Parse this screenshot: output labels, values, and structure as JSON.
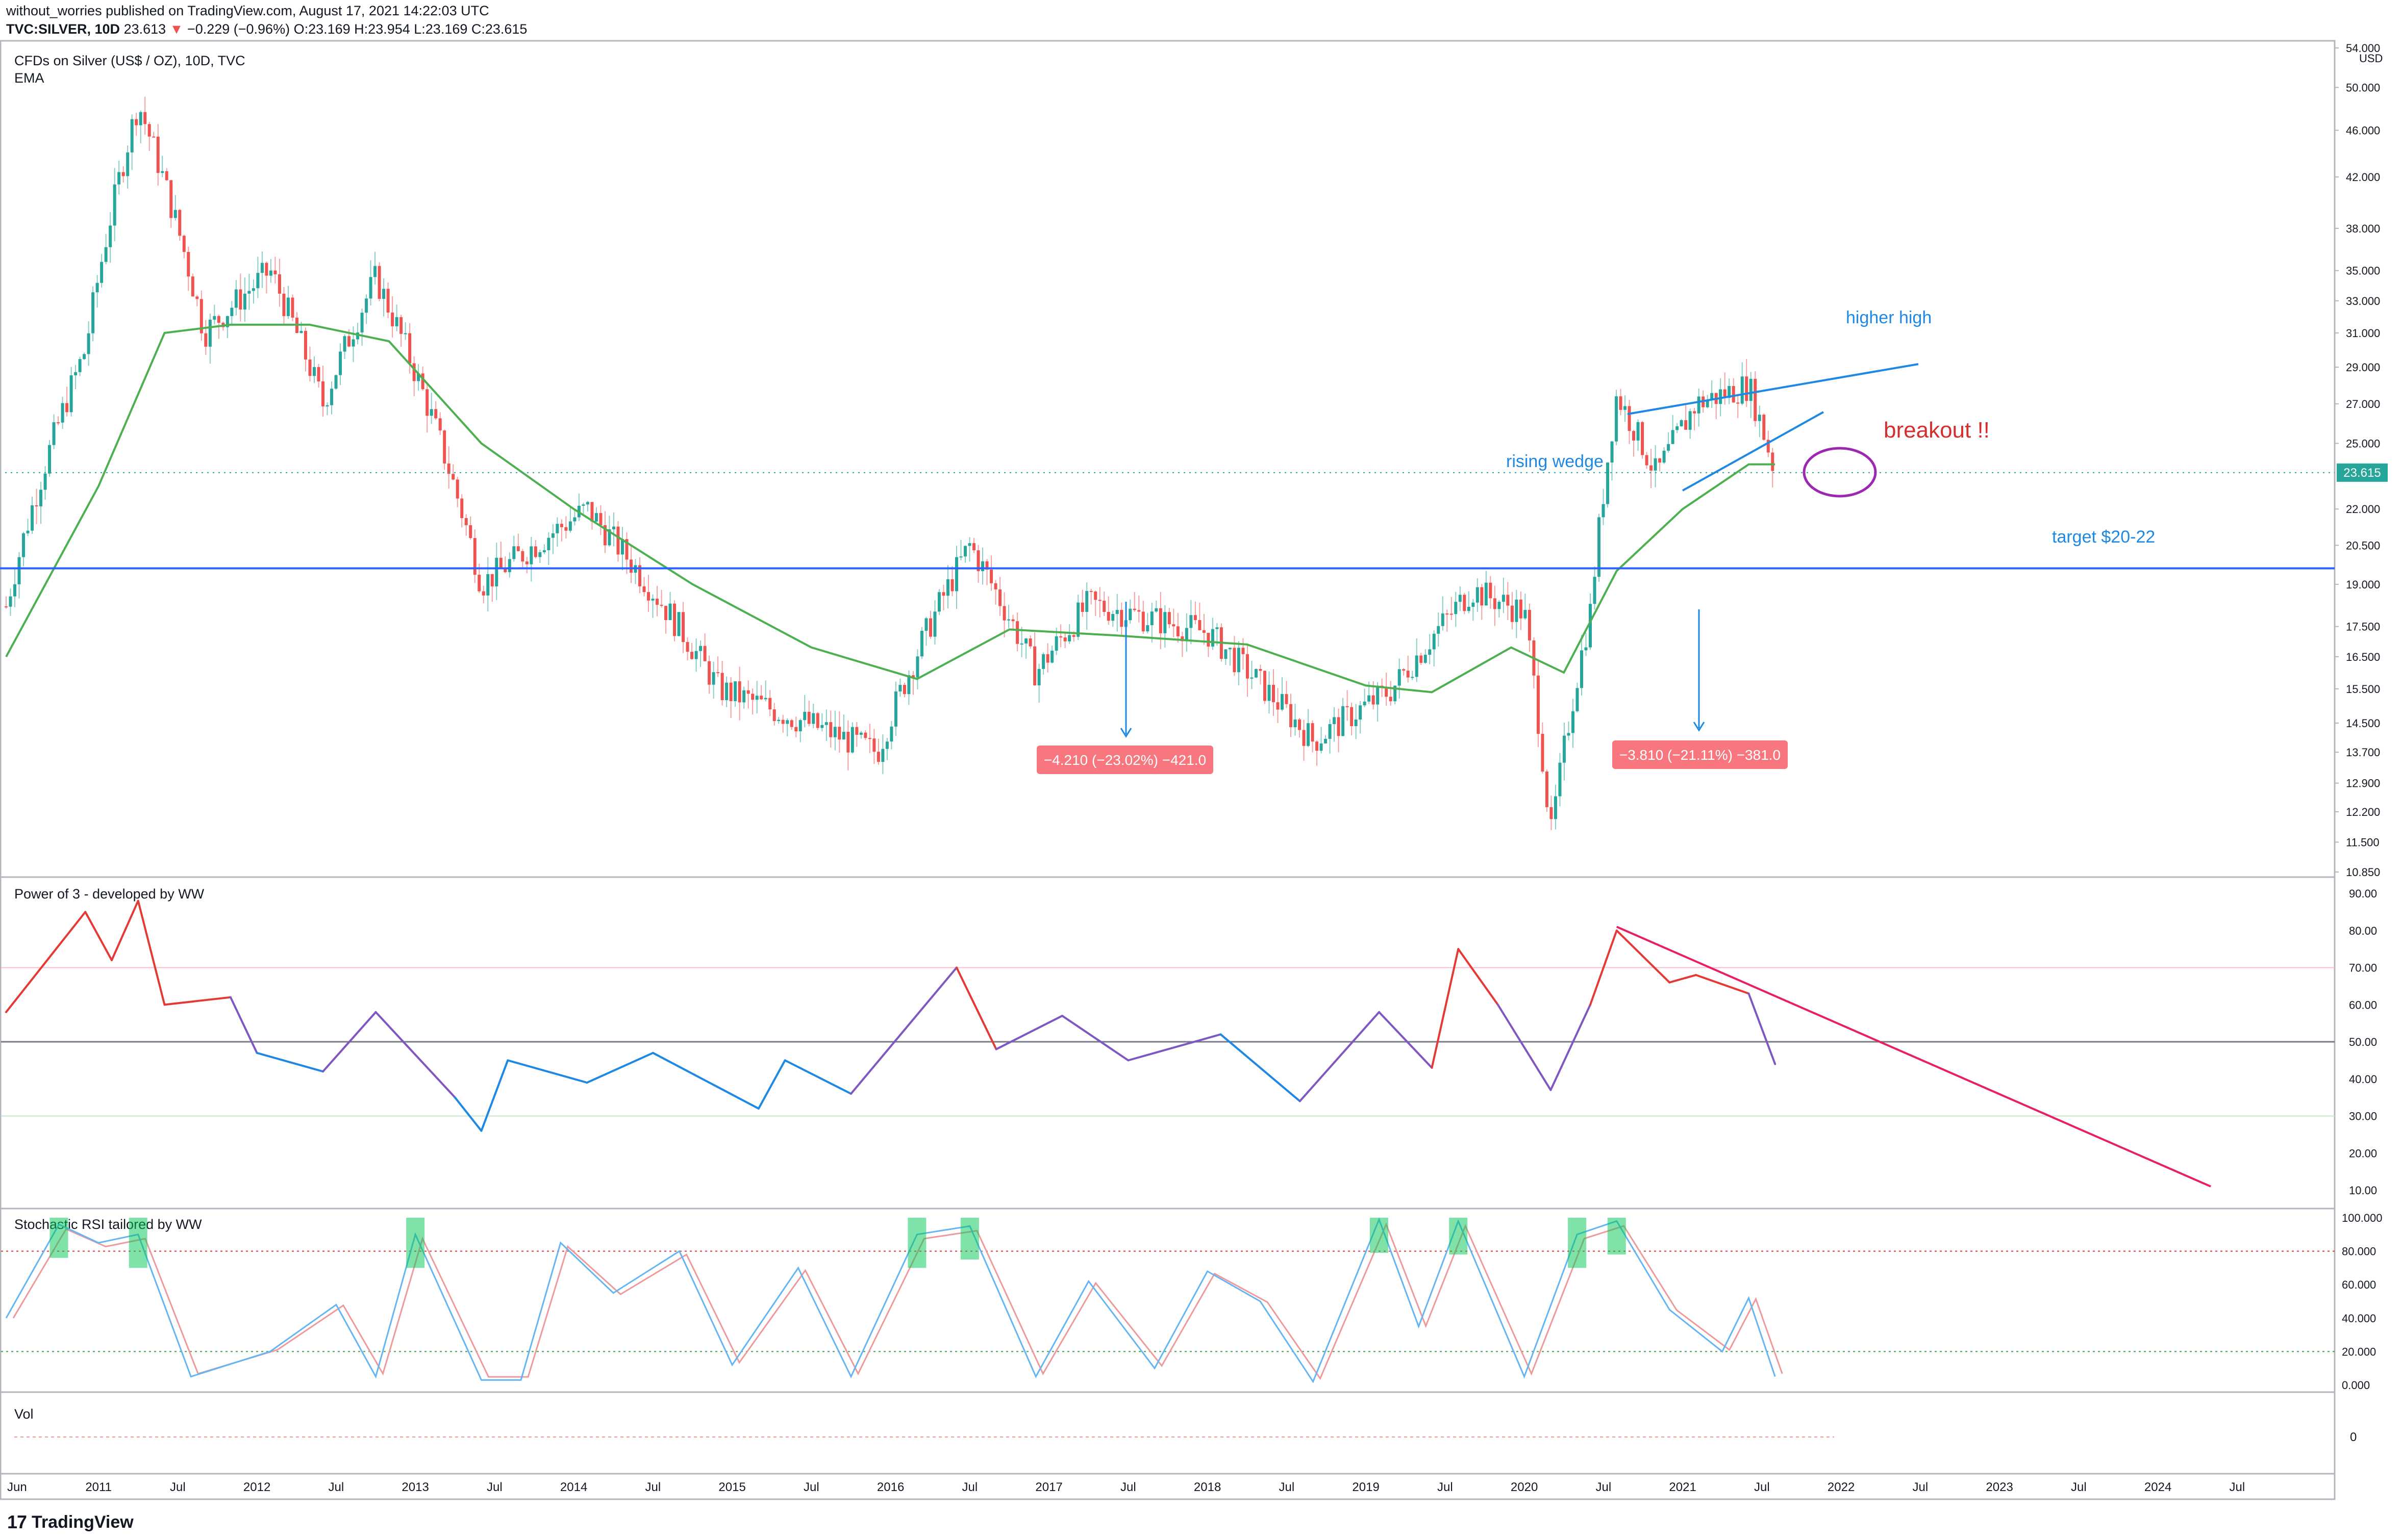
{
  "header": {
    "publisher_line": "without_worries published on TradingView.com, August 17, 2021 14:22:03 UTC",
    "symbol": "TVC:SILVER, 10D",
    "last": "23.613",
    "change_arrow": "▼",
    "change": "−0.229 (−0.96%)",
    "ohlc": "O:23.169 H:23.954 L:23.169 C:23.615"
  },
  "footer": {
    "logo_text": "TradingView",
    "logo_mark": "17"
  },
  "colors": {
    "up": "#26a69a",
    "down": "#ef5350",
    "ema": "#4caf50",
    "trend": "#2962ff",
    "annotation_blue": "#1e88e5",
    "annotation_red": "#d32f2f",
    "circle": "#9c27b0",
    "power_red": "#e53935",
    "power_blue": "#1e88e5",
    "power_trend": "#e91e63",
    "stoch_k": "#64b5f6",
    "stoch_d": "#ef9a9a",
    "stoch_extreme": "#00c853"
  },
  "chart_data": [
    {
      "type": "candlestick",
      "legend_title": "CFDs on Silver (US$ / OZ), 10D, TVC",
      "legend_indicator": "EMA",
      "currency": "USD",
      "last_price_label": "23.615",
      "price_axis_ticks": [
        "54.000",
        "50.000",
        "46.000",
        "42.000",
        "38.000",
        "35.000",
        "33.000",
        "31.000",
        "29.000",
        "27.000",
        "25.000",
        "23.615",
        "22.000",
        "20.500",
        "19.000",
        "17.500",
        "16.500",
        "15.500",
        "14.500",
        "13.700",
        "12.900",
        "12.200",
        "11.500",
        "10.850"
      ],
      "time_axis_labels": [
        "Jun",
        "2011",
        "Jul",
        "2012",
        "Jul",
        "2013",
        "Jul",
        "2014",
        "Jul",
        "2015",
        "Jul",
        "2016",
        "Jul",
        "2017",
        "Jul",
        "2018",
        "Jul",
        "2019",
        "Jul",
        "2020",
        "Jul",
        "2021",
        "Jul",
        "2022",
        "Jul",
        "2023",
        "Jul",
        "2024",
        "Jul"
      ],
      "key_points": [
        {
          "date": "2010-06",
          "price": 18.2
        },
        {
          "date": "2010-12",
          "price": 30.0
        },
        {
          "date": "2011-04",
          "price": 48.5
        },
        {
          "date": "2011-09",
          "price": 31.0
        },
        {
          "date": "2012-02",
          "price": 35.0
        },
        {
          "date": "2012-06",
          "price": 27.0
        },
        {
          "date": "2012-10",
          "price": 34.5
        },
        {
          "date": "2013-06",
          "price": 19.0
        },
        {
          "date": "2014-02",
          "price": 22.0
        },
        {
          "date": "2014-12",
          "price": 15.5
        },
        {
          "date": "2015-12",
          "price": 13.7
        },
        {
          "date": "2016-07",
          "price": 20.5
        },
        {
          "date": "2016-12",
          "price": 16.0
        },
        {
          "date": "2017-04",
          "price": 18.3
        },
        {
          "date": "2018-01",
          "price": 17.3
        },
        {
          "date": "2018-09",
          "price": 14.0
        },
        {
          "date": "2019-03",
          "price": 15.5
        },
        {
          "date": "2019-09",
          "price": 18.8
        },
        {
          "date": "2020-01",
          "price": 18.0
        },
        {
          "date": "2020-03",
          "price": 11.6
        },
        {
          "date": "2020-06",
          "price": 18.0
        },
        {
          "date": "2020-08",
          "price": 27.5
        },
        {
          "date": "2020-11",
          "price": 23.5
        },
        {
          "date": "2021-02",
          "price": 27.0
        },
        {
          "date": "2021-06",
          "price": 28.0
        },
        {
          "date": "2021-08",
          "price": 23.6
        }
      ],
      "ema_points": [
        {
          "date": "2010-06",
          "price": 16.5
        },
        {
          "date": "2011-01",
          "price": 23.0
        },
        {
          "date": "2011-06",
          "price": 31.0
        },
        {
          "date": "2011-11",
          "price": 31.5
        },
        {
          "date": "2012-05",
          "price": 31.5
        },
        {
          "date": "2012-11",
          "price": 30.5
        },
        {
          "date": "2013-06",
          "price": 25.0
        },
        {
          "date": "2014-01",
          "price": 22.0
        },
        {
          "date": "2014-10",
          "price": 19.0
        },
        {
          "date": "2015-07",
          "price": 16.8
        },
        {
          "date": "2016-03",
          "price": 15.8
        },
        {
          "date": "2016-10",
          "price": 17.4
        },
        {
          "date": "2017-06",
          "price": 17.2
        },
        {
          "date": "2018-04",
          "price": 16.9
        },
        {
          "date": "2019-01",
          "price": 15.6
        },
        {
          "date": "2019-06",
          "price": 15.4
        },
        {
          "date": "2019-12",
          "price": 16.8
        },
        {
          "date": "2020-04",
          "price": 16.0
        },
        {
          "date": "2020-08",
          "price": 19.5
        },
        {
          "date": "2021-01",
          "price": 22.0
        },
        {
          "date": "2021-06",
          "price": 24.0
        },
        {
          "date": "2021-08",
          "price": 24.0
        }
      ],
      "horizontal_line_price": 19.6,
      "annotations": {
        "higher_high": "higher high",
        "rising_wedge": "rising wedge",
        "breakout": "breakout !!",
        "target": "target $20-22",
        "measure1": "−4.210 (−23.02%) −421.0",
        "measure2": "−3.810 (−21.11%) −381.0"
      }
    },
    {
      "type": "line",
      "title": "Power of 3 - developed by WW",
      "ylim": [
        0,
        90
      ],
      "y_ticks": [
        "90.00",
        "80.00",
        "70.00",
        "60.00",
        "50.00",
        "40.00",
        "30.00",
        "20.00",
        "10.00"
      ],
      "levels": [
        70,
        50,
        30
      ],
      "points": [
        {
          "date": "2010-06",
          "value": 58
        },
        {
          "date": "2010-12",
          "value": 85
        },
        {
          "date": "2011-02",
          "value": 72
        },
        {
          "date": "2011-04",
          "value": 88
        },
        {
          "date": "2011-06",
          "value": 60
        },
        {
          "date": "2011-11",
          "value": 62
        },
        {
          "date": "2012-01",
          "value": 47
        },
        {
          "date": "2012-06",
          "value": 42
        },
        {
          "date": "2012-10",
          "value": 58
        },
        {
          "date": "2013-04",
          "value": 35
        },
        {
          "date": "2013-06",
          "value": 26
        },
        {
          "date": "2013-08",
          "value": 45
        },
        {
          "date": "2014-02",
          "value": 39
        },
        {
          "date": "2014-07",
          "value": 47
        },
        {
          "date": "2015-03",
          "value": 32
        },
        {
          "date": "2015-05",
          "value": 45
        },
        {
          "date": "2015-10",
          "value": 36
        },
        {
          "date": "2016-06",
          "value": 70
        },
        {
          "date": "2016-09",
          "value": 48
        },
        {
          "date": "2017-02",
          "value": 57
        },
        {
          "date": "2017-07",
          "value": 45
        },
        {
          "date": "2018-02",
          "value": 52
        },
        {
          "date": "2018-08",
          "value": 34
        },
        {
          "date": "2019-02",
          "value": 58
        },
        {
          "date": "2019-06",
          "value": 43
        },
        {
          "date": "2019-08",
          "value": 75
        },
        {
          "date": "2019-11",
          "value": 60
        },
        {
          "date": "2020-03",
          "value": 37
        },
        {
          "date": "2020-06",
          "value": 60
        },
        {
          "date": "2020-08",
          "value": 80
        },
        {
          "date": "2020-12",
          "value": 66
        },
        {
          "date": "2021-02",
          "value": 68
        },
        {
          "date": "2021-06",
          "value": 63
        },
        {
          "date": "2021-08",
          "value": 44
        }
      ],
      "trend_line": [
        {
          "date": "2020-08",
          "value": 81
        },
        {
          "date": "2024-05",
          "value": 11
        }
      ]
    },
    {
      "type": "line",
      "title": "Stochastic RSI tailored by WW",
      "ylim": [
        0,
        100
      ],
      "y_ticks": [
        "100.000",
        "80.000",
        "60.000",
        "40.000",
        "20.000",
        "0.000"
      ],
      "levels": [
        80,
        20
      ],
      "points": [
        {
          "date": "2010-06",
          "value": 40
        },
        {
          "date": "2010-10",
          "value": 96
        },
        {
          "date": "2011-01",
          "value": 85
        },
        {
          "date": "2011-04",
          "value": 90
        },
        {
          "date": "2011-08",
          "value": 5
        },
        {
          "date": "2012-02",
          "value": 20
        },
        {
          "date": "2012-07",
          "value": 48
        },
        {
          "date": "2012-10",
          "value": 5
        },
        {
          "date": "2013-01",
          "value": 90
        },
        {
          "date": "2013-06",
          "value": 3
        },
        {
          "date": "2013-09",
          "value": 3
        },
        {
          "date": "2013-12",
          "value": 85
        },
        {
          "date": "2014-04",
          "value": 55
        },
        {
          "date": "2014-09",
          "value": 80
        },
        {
          "date": "2015-01",
          "value": 12
        },
        {
          "date": "2015-06",
          "value": 70
        },
        {
          "date": "2015-10",
          "value": 5
        },
        {
          "date": "2016-03",
          "value": 90
        },
        {
          "date": "2016-07",
          "value": 95
        },
        {
          "date": "2016-12",
          "value": 5
        },
        {
          "date": "2017-04",
          "value": 62
        },
        {
          "date": "2017-09",
          "value": 10
        },
        {
          "date": "2018-01",
          "value": 68
        },
        {
          "date": "2018-05",
          "value": 50
        },
        {
          "date": "2018-09",
          "value": 2
        },
        {
          "date": "2019-02",
          "value": 99
        },
        {
          "date": "2019-05",
          "value": 35
        },
        {
          "date": "2019-08",
          "value": 98
        },
        {
          "date": "2020-01",
          "value": 5
        },
        {
          "date": "2020-05",
          "value": 90
        },
        {
          "date": "2020-08",
          "value": 98
        },
        {
          "date": "2020-12",
          "value": 45
        },
        {
          "date": "2021-04",
          "value": 20
        },
        {
          "date": "2021-06",
          "value": 52
        },
        {
          "date": "2021-08",
          "value": 5
        }
      ]
    },
    {
      "type": "line",
      "title": "Vol",
      "y_ticks": [
        "0"
      ]
    }
  ]
}
